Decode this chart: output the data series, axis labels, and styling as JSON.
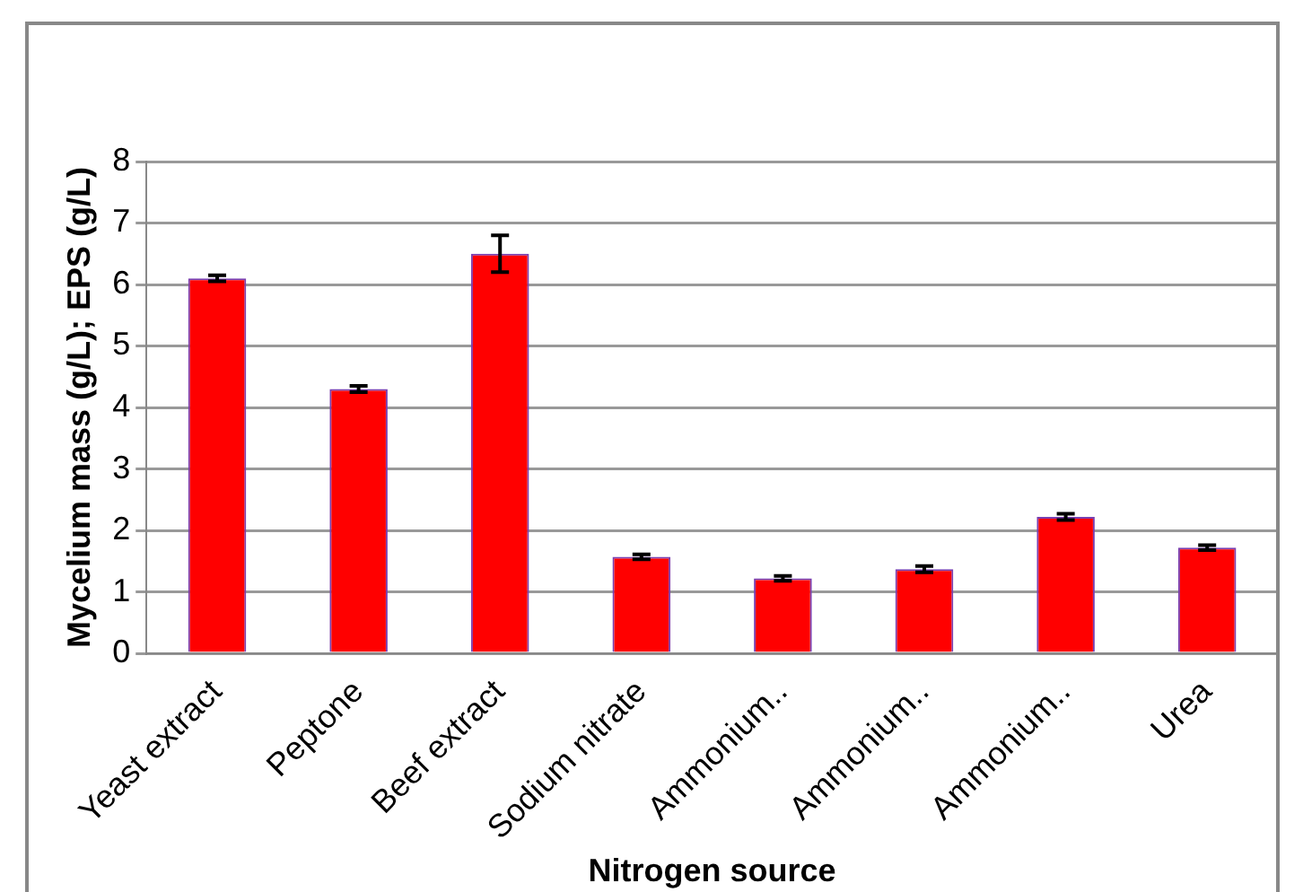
{
  "chart_data": {
    "type": "bar",
    "xlabel": "Nitrogen source",
    "ylabel": "Mycelium mass (g/L); EPS (g/L)",
    "categories": [
      "Yeast extract",
      "Peptone",
      "Beef extract",
      "Sodium nitrate",
      "Ammonium..",
      "Ammonium..",
      "Ammonium..",
      "Urea"
    ],
    "values": [
      6.1,
      4.3,
      6.5,
      1.57,
      1.22,
      1.37,
      2.22,
      1.72
    ],
    "errors": [
      0.05,
      0.05,
      0.3,
      0.04,
      0.04,
      0.05,
      0.05,
      0.04
    ],
    "color": "#ff0000",
    "ylim": [
      0,
      8
    ],
    "yticks": [
      0,
      1,
      2,
      3,
      4,
      5,
      6,
      7,
      8
    ],
    "grid": "y",
    "legend": false
  }
}
